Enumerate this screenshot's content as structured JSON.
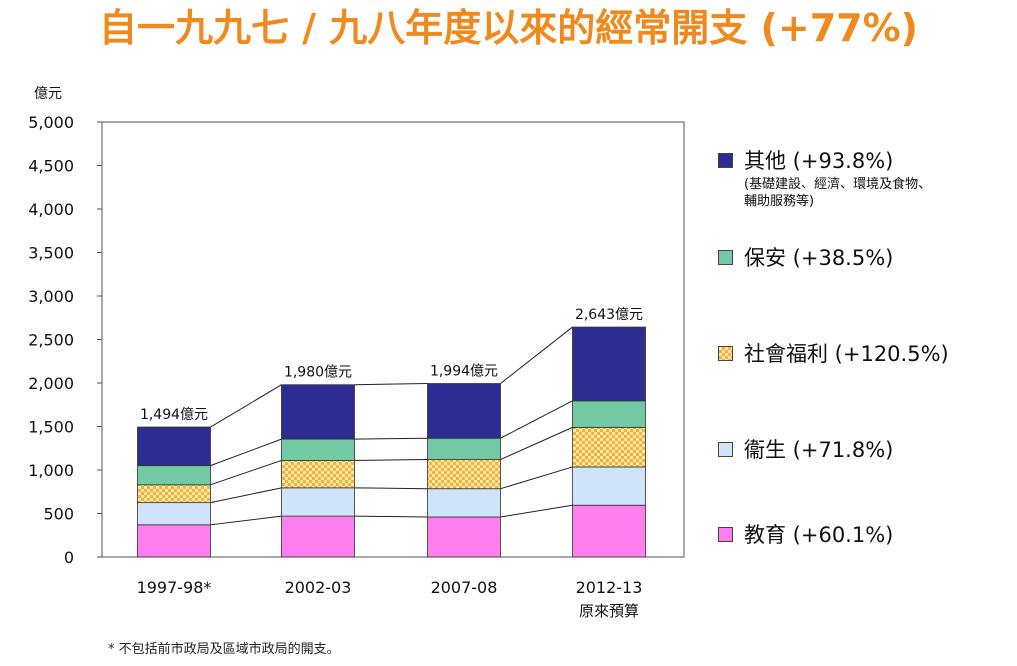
{
  "title": "自一九九七 / 九八年度以來的經常開支 (+77%)",
  "footnote": "* 不包括前市政局及區域市政局的開支。",
  "colors": {
    "title": "#f08a1e"
  },
  "chart_data": {
    "type": "bar",
    "stacked": true,
    "ylabel": "億元",
    "ylim": [
      0,
      5000
    ],
    "yticks": [
      "5,000",
      "4,500",
      "4,000",
      "3,500",
      "3,000",
      "2,500",
      "2,000",
      "1,500",
      "1,000",
      "500",
      "0"
    ],
    "ytick_values": [
      5000,
      4500,
      4000,
      3500,
      3000,
      2500,
      2000,
      1500,
      1000,
      500,
      0
    ],
    "categories": [
      "1997-98*",
      "2002-03",
      "2007-08",
      "2012-13"
    ],
    "category_sublabels": [
      "",
      "",
      "",
      "原來預算"
    ],
    "totals": [
      1494,
      1980,
      1994,
      2643
    ],
    "total_labels": [
      "1,494億元",
      "1,980億元",
      "1,994億元",
      "2,643億元"
    ],
    "connector_lines": true,
    "series": [
      {
        "name": "教育",
        "change": "(+60.1%)",
        "color": "#ff7ff0",
        "values": [
          370,
          470,
          460,
          595
        ]
      },
      {
        "name": "衞生",
        "change": "(+71.8%)",
        "color": "#cfe3fb",
        "values": [
          255,
          325,
          325,
          440
        ]
      },
      {
        "name": "社會福利",
        "change": "(+120.5%)",
        "color": "#f5b335",
        "pattern": "checker",
        "values": [
          205,
          315,
          335,
          455
        ]
      },
      {
        "name": "保安",
        "change": "(+38.5%)",
        "color": "#72c9a3",
        "values": [
          220,
          245,
          245,
          305
        ]
      },
      {
        "name": "其他",
        "change": "(+93.8%)",
        "note_lines": [
          "(基礎建設、經濟、環境及食物、",
          "輔助服務等)"
        ],
        "color": "#2d2d91",
        "values": [
          444,
          625,
          629,
          848
        ]
      }
    ],
    "legend_position": "right"
  }
}
